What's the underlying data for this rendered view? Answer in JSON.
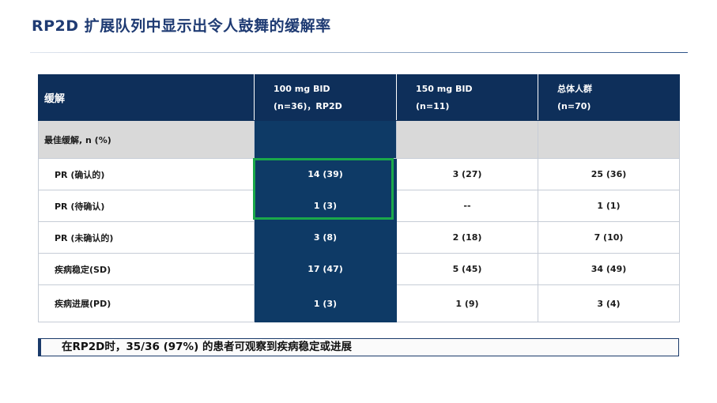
{
  "slide": {
    "title": "RP2D 扩展队列中显示出令人鼓舞的缓解率",
    "callout": "在RP2D时，35/36 (97%) 的患者可观察到疾病稳定或进展"
  },
  "table": {
    "header": {
      "col0": "缓解",
      "col1_line1": "100 mg  BID",
      "col1_line2": "(n=36)，RP2D",
      "col2_line1": "150  mg  BID",
      "col2_line2": "(n=11)",
      "col3_line1": "总体人群",
      "col3_line2": "(n=70)"
    },
    "section_label": "最佳缓解, n (%)",
    "rows": [
      {
        "label": "PR (确认的)",
        "c1": "14 (39)",
        "c2": "3 (27)",
        "c3": "25 (36)"
      },
      {
        "label": "PR (待确认)",
        "c1": "1 (3)",
        "c2": "--",
        "c3": "1 (1)"
      },
      {
        "label": "PR (未确认的)",
        "c1": "3 (8)",
        "c2": "2 (18)",
        "c3": "7 (10)"
      },
      {
        "label": "疾病稳定(SD)",
        "c1": "17 (47)",
        "c2": "5 (45)",
        "c3": "34 (49)"
      },
      {
        "label": "疾病进展(PD)",
        "c1": "1 (3)",
        "c2": "1 (9)",
        "c3": "3 (4)"
      }
    ]
  },
  "colors": {
    "header_bg": "#0e2f5a",
    "highlight_col_bg": "#0e3a66",
    "section_bg": "#d9d9d9",
    "highlight_box": "#1aa84a",
    "title": "#1f3b73"
  }
}
